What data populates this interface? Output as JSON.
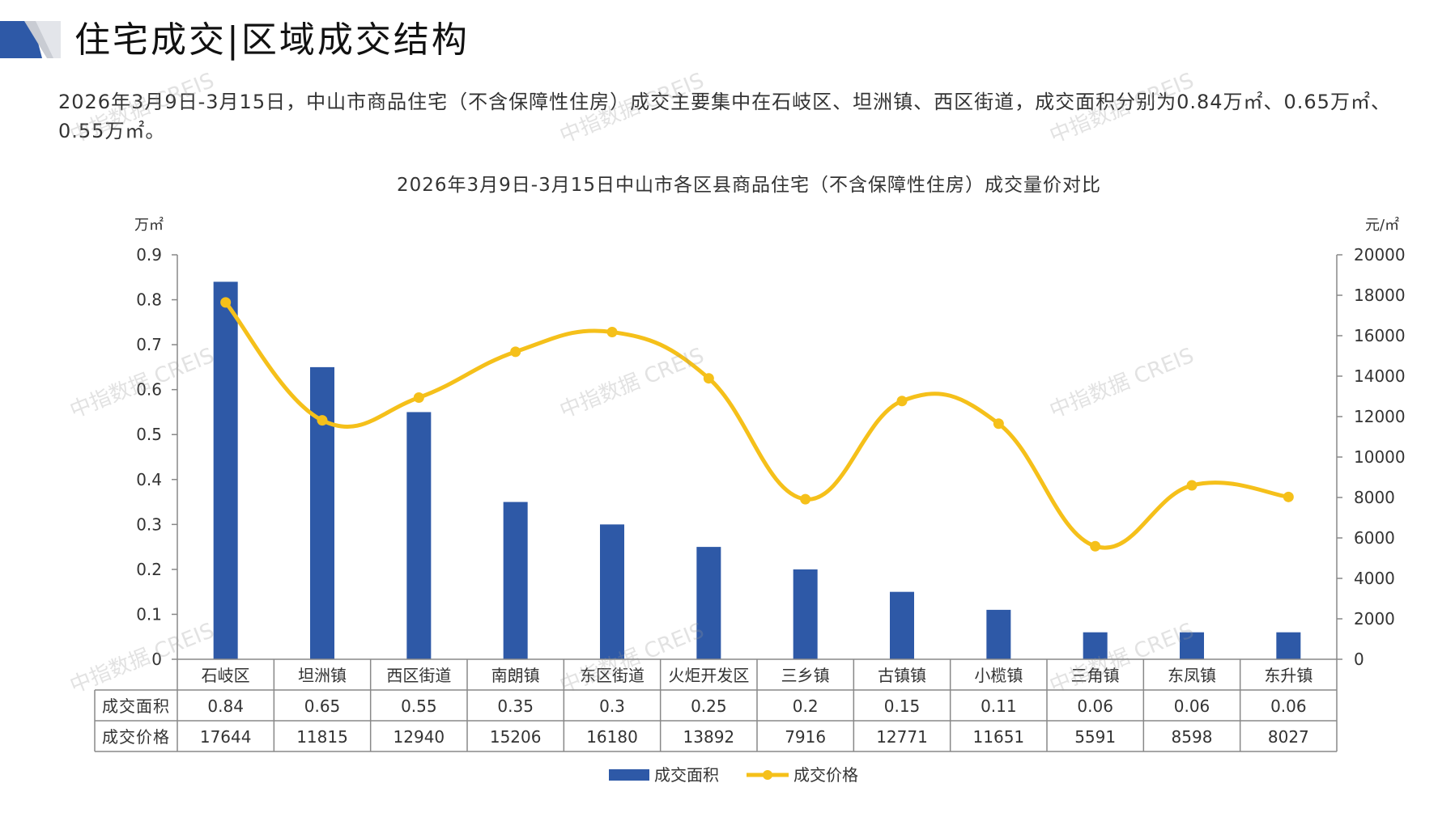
{
  "header": {
    "title": "住宅成交|区域成交结构",
    "summary": "2026年3月9日-3月15日，中山市商品住宅（不含保障性住房）成交主要集中在石岐区、坦洲镇、西区街道，成交面积分别为0.84万㎡、0.65万㎡、0.55万㎡。"
  },
  "watermark": "中指数据 CREIS",
  "colors": {
    "bar": "#2E59A7",
    "line": "#F5C01A",
    "title_bar": "#2E59A7",
    "grid": "#888888"
  },
  "table": {
    "row_labels": [
      "成交面积",
      "成交价格"
    ]
  },
  "chart_data": {
    "type": "bar",
    "title": "2026年3月9日-3月15日中山市各区县商品住宅（不含保障性住房）成交量价对比",
    "y_left_unit": "万㎡",
    "y_right_unit": "元/㎡",
    "categories": [
      "石岐区",
      "坦洲镇",
      "西区街道",
      "南朗镇",
      "东区街道",
      "火炬开发区",
      "三乡镇",
      "古镇镇",
      "小榄镇",
      "三角镇",
      "东凤镇",
      "东升镇"
    ],
    "series": [
      {
        "name": "成交面积",
        "type": "bar",
        "axis": "left",
        "values": [
          0.84,
          0.65,
          0.55,
          0.35,
          0.3,
          0.25,
          0.2,
          0.15,
          0.11,
          0.06,
          0.06,
          0.06
        ]
      },
      {
        "name": "成交价格",
        "type": "line",
        "axis": "right",
        "values": [
          17644,
          11815,
          12940,
          15206,
          16180,
          13892,
          7916,
          12771,
          11651,
          5591,
          8598,
          8027
        ]
      }
    ],
    "y_left_range": [
      0,
      0.9
    ],
    "y_left_ticks": [
      "0",
      "0.1",
      "0.2",
      "0.3",
      "0.4",
      "0.5",
      "0.6",
      "0.7",
      "0.8",
      "0.9"
    ],
    "y_right_range": [
      0,
      20000
    ],
    "y_right_ticks": [
      "0",
      "2000",
      "4000",
      "6000",
      "8000",
      "10000",
      "12000",
      "14000",
      "16000",
      "18000",
      "20000"
    ],
    "legend_position": "bottom",
    "grid": false
  }
}
